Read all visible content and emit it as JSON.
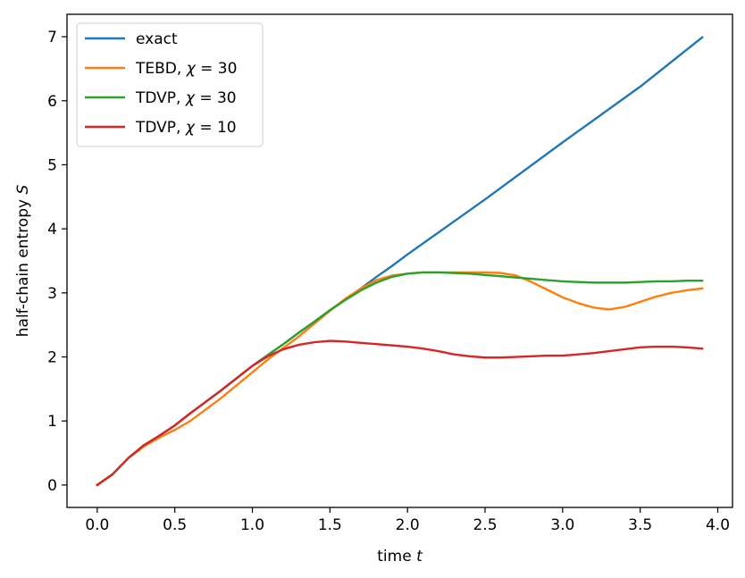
{
  "chart_data": {
    "type": "line",
    "xlabel": "time t",
    "ylabel": "half-chain entropy S",
    "xlim": [
      -0.195,
      4.095
    ],
    "ylim": [
      -0.35,
      7.35
    ],
    "xticks": [
      "0.0",
      "0.5",
      "1.0",
      "1.5",
      "2.0",
      "2.5",
      "3.0",
      "3.5",
      "4.0"
    ],
    "yticks": [
      "0",
      "1",
      "2",
      "3",
      "4",
      "5",
      "6",
      "7"
    ],
    "grid": false,
    "legend_position": "top-left",
    "series": [
      {
        "name": "exact",
        "color": "#1f77b4",
        "x": [
          0.0,
          0.1,
          0.2,
          0.3,
          0.4,
          0.5,
          0.6,
          0.7,
          0.8,
          0.9,
          1.0,
          1.1,
          1.2,
          1.3,
          1.4,
          1.5,
          1.6,
          1.7,
          1.8,
          1.9,
          2.0,
          2.5,
          3.0,
          3.5,
          3.9
        ],
        "y": [
          0.0,
          0.17,
          0.42,
          0.62,
          0.77,
          0.93,
          1.12,
          1.3,
          1.48,
          1.67,
          1.86,
          2.03,
          2.2,
          2.38,
          2.55,
          2.73,
          2.9,
          3.07,
          3.25,
          3.42,
          3.6,
          4.46,
          5.35,
          6.22,
          6.99
        ]
      },
      {
        "name": "TEBD, χ = 30",
        "color": "#ff7f0e",
        "x": [
          0.0,
          0.1,
          0.2,
          0.3,
          0.4,
          0.5,
          0.6,
          0.7,
          0.8,
          0.9,
          1.0,
          1.1,
          1.2,
          1.3,
          1.4,
          1.5,
          1.6,
          1.7,
          1.8,
          1.9,
          2.0,
          2.1,
          2.2,
          2.3,
          2.4,
          2.5,
          2.6,
          2.7,
          2.8,
          2.9,
          3.0,
          3.1,
          3.2,
          3.3,
          3.4,
          3.5,
          3.6,
          3.7,
          3.8,
          3.9
        ],
        "y": [
          0.0,
          0.17,
          0.42,
          0.6,
          0.74,
          0.86,
          1.0,
          1.18,
          1.36,
          1.56,
          1.76,
          1.96,
          2.14,
          2.32,
          2.52,
          2.72,
          2.91,
          3.07,
          3.2,
          3.27,
          3.3,
          3.32,
          3.32,
          3.32,
          3.32,
          3.32,
          3.31,
          3.27,
          3.17,
          3.05,
          2.93,
          2.84,
          2.77,
          2.74,
          2.78,
          2.86,
          2.94,
          3.0,
          3.04,
          3.07
        ]
      },
      {
        "name": "TDVP, χ = 30",
        "color": "#2ca02c",
        "x": [
          0.0,
          0.1,
          0.2,
          0.3,
          0.4,
          0.5,
          0.6,
          0.7,
          0.8,
          0.9,
          1.0,
          1.1,
          1.2,
          1.3,
          1.4,
          1.5,
          1.6,
          1.7,
          1.8,
          1.9,
          2.0,
          2.1,
          2.2,
          2.3,
          2.4,
          2.5,
          2.6,
          2.7,
          2.8,
          2.9,
          3.0,
          3.1,
          3.2,
          3.3,
          3.4,
          3.5,
          3.6,
          3.7,
          3.8,
          3.9
        ],
        "y": [
          0.0,
          0.17,
          0.42,
          0.62,
          0.77,
          0.93,
          1.12,
          1.3,
          1.48,
          1.67,
          1.86,
          2.03,
          2.2,
          2.38,
          2.55,
          2.73,
          2.89,
          3.04,
          3.16,
          3.25,
          3.3,
          3.32,
          3.32,
          3.31,
          3.3,
          3.28,
          3.26,
          3.24,
          3.22,
          3.2,
          3.18,
          3.17,
          3.16,
          3.16,
          3.16,
          3.17,
          3.18,
          3.18,
          3.19,
          3.19
        ]
      },
      {
        "name": "TDVP, χ = 10",
        "color": "#d62728",
        "x": [
          0.0,
          0.1,
          0.2,
          0.3,
          0.4,
          0.5,
          0.6,
          0.7,
          0.8,
          0.9,
          1.0,
          1.1,
          1.2,
          1.3,
          1.4,
          1.5,
          1.6,
          1.7,
          1.8,
          1.9,
          2.0,
          2.1,
          2.2,
          2.3,
          2.4,
          2.5,
          2.6,
          2.7,
          2.8,
          2.9,
          3.0,
          3.1,
          3.2,
          3.3,
          3.4,
          3.5,
          3.6,
          3.7,
          3.8,
          3.9
        ],
        "y": [
          0.0,
          0.17,
          0.42,
          0.62,
          0.77,
          0.93,
          1.12,
          1.3,
          1.48,
          1.67,
          1.86,
          2.01,
          2.12,
          2.19,
          2.23,
          2.25,
          2.24,
          2.22,
          2.2,
          2.18,
          2.16,
          2.13,
          2.09,
          2.04,
          2.01,
          1.99,
          1.99,
          2.0,
          2.01,
          2.02,
          2.02,
          2.04,
          2.06,
          2.09,
          2.12,
          2.15,
          2.16,
          2.16,
          2.15,
          2.13
        ]
      }
    ]
  }
}
